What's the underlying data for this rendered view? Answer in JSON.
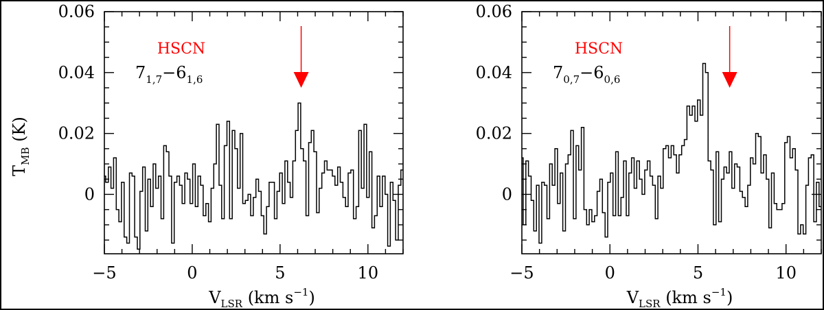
{
  "colors": {
    "spectrum": "#000000",
    "annotation": "#ff0000",
    "background": "#ffffff"
  },
  "chart_data": [
    {
      "type": "line",
      "step": true,
      "xlim": [
        -5,
        12
      ],
      "ylim": [
        -0.0195,
        0.06
      ],
      "xticks": [
        "−5",
        "0",
        "5",
        "10"
      ],
      "xtick_values": [
        -5,
        0,
        5,
        10
      ],
      "yticks": [
        "0.06",
        "0.04",
        "0.02",
        "0"
      ],
      "ytick_values": [
        0.06,
        0.04,
        0.02,
        0
      ],
      "ylabel": {
        "main": "T",
        "sub": "MB",
        "rest": " (K)"
      },
      "xlabel": {
        "main": "V",
        "sub": "LSR",
        "rest": " (km s",
        "sup": "−1",
        "end": ")"
      },
      "molecule": "HSCN",
      "transition": {
        "upper": "7",
        "upper_sub": "1,7",
        "sep": "−",
        "lower": "6",
        "lower_sub": "1,6"
      },
      "arrow_x": 6.2,
      "x": [
        -5.0,
        -4.85,
        -4.7,
        -4.55,
        -4.4,
        -4.25,
        -4.1,
        -3.95,
        -3.8,
        -3.65,
        -3.5,
        -3.35,
        -3.2,
        -3.05,
        -2.9,
        -2.75,
        -2.6,
        -2.45,
        -2.3,
        -2.15,
        -2.0,
        -1.85,
        -1.7,
        -1.55,
        -1.4,
        -1.25,
        -1.1,
        -0.95,
        -0.8,
        -0.65,
        -0.5,
        -0.35,
        -0.2,
        -0.05,
        0.1,
        0.25,
        0.4,
        0.55,
        0.7,
        0.85,
        1.0,
        1.15,
        1.3,
        1.45,
        1.6,
        1.75,
        1.9,
        2.05,
        2.2,
        2.35,
        2.5,
        2.65,
        2.8,
        2.95,
        3.1,
        3.25,
        3.4,
        3.55,
        3.7,
        3.85,
        4.0,
        4.15,
        4.3,
        4.45,
        4.6,
        4.75,
        4.9,
        5.05,
        5.2,
        5.35,
        5.5,
        5.65,
        5.8,
        5.95,
        6.1,
        6.25,
        6.4,
        6.55,
        6.7,
        6.85,
        7.0,
        7.15,
        7.3,
        7.45,
        7.6,
        7.75,
        7.9,
        8.05,
        8.2,
        8.35,
        8.5,
        8.65,
        8.8,
        8.95,
        9.1,
        9.25,
        9.4,
        9.55,
        9.7,
        9.85,
        10.0,
        10.15,
        10.3,
        10.45,
        10.6,
        10.75,
        10.9,
        11.05,
        11.2,
        11.35,
        11.5,
        11.65,
        11.8,
        11.95
      ],
      "y": [
        0.006,
        0.004,
        0.009,
        0.002,
        0.012,
        -0.005,
        -0.009,
        0.004,
        -0.014,
        -0.016,
        0.007,
        0.006,
        -0.014,
        -0.018,
        0.001,
        0.009,
        -0.012,
        0.005,
        -0.004,
        0.01,
        0.002,
        0.006,
        -0.008,
        0.016,
        0.014,
        0.006,
        -0.016,
        0.004,
        0.006,
        0.003,
        -0.003,
        0.007,
        0.005,
        -0.003,
        0.01,
        -0.004,
        0.006,
        0.003,
        -0.007,
        -0.003,
        -0.009,
        0.002,
        0.01,
        0.023,
        0.003,
        -0.008,
        0.016,
        0.024,
        -0.008,
        0.021,
        0.015,
        0.002,
        0.02,
        -0.003,
        -0.002,
        0.0,
        -0.007,
        -0.001,
        0.005,
        0.001,
        -0.007,
        -0.013,
        -0.004,
        0.004,
        0.004,
        -0.008,
        0.001,
        0.007,
        -0.003,
        0.011,
        0.004,
        -0.001,
        0.011,
        0.021,
        0.03,
        0.015,
        0.011,
        -0.007,
        0.017,
        0.021,
        0.014,
        -0.006,
        0.002,
        0.007,
        0.011,
        0.008,
        0.008,
        0.006,
        0.003,
        0.009,
        0.004,
        -0.001,
        -0.004,
        0.007,
        0.008,
        -0.008,
        -0.004,
        0.021,
        0.002,
        0.023,
        -0.001,
        0.014,
        -0.011,
        -0.007,
        0.006,
        -0.004,
        0.006,
        0.0,
        -0.017,
        0.004,
        -0.002,
        -0.015,
        0.003,
        0.008
      ]
    },
    {
      "type": "line",
      "step": true,
      "xlim": [
        -5,
        12
      ],
      "ylim": [
        -0.0195,
        0.06
      ],
      "xticks": [
        "−5",
        "0",
        "5",
        "10"
      ],
      "xtick_values": [
        -5,
        0,
        5,
        10
      ],
      "yticks": [
        "0.06",
        "0.04",
        "0.02",
        "0"
      ],
      "ytick_values": [
        0.06,
        0.04,
        0.02,
        0
      ],
      "xlabel": {
        "main": "V",
        "sub": "LSR",
        "rest": " (km s",
        "sup": "−1",
        "end": ")"
      },
      "molecule": "HSCN",
      "transition": {
        "upper": "7",
        "upper_sub": "0,7",
        "sep": "−",
        "lower": "6",
        "lower_sub": "0,6"
      },
      "arrow_x": 6.8,
      "x": [
        -5.0,
        -4.85,
        -4.7,
        -4.55,
        -4.4,
        -4.25,
        -4.1,
        -3.95,
        -3.8,
        -3.65,
        -3.5,
        -3.35,
        -3.2,
        -3.05,
        -2.9,
        -2.75,
        -2.6,
        -2.45,
        -2.3,
        -2.15,
        -2.0,
        -1.85,
        -1.7,
        -1.55,
        -1.4,
        -1.25,
        -1.1,
        -0.95,
        -0.8,
        -0.65,
        -0.5,
        -0.35,
        -0.2,
        -0.05,
        0.1,
        0.25,
        0.4,
        0.55,
        0.7,
        0.85,
        1.0,
        1.15,
        1.3,
        1.45,
        1.6,
        1.75,
        1.9,
        2.05,
        2.2,
        2.35,
        2.5,
        2.65,
        2.8,
        2.95,
        3.1,
        3.25,
        3.4,
        3.55,
        3.7,
        3.85,
        4.0,
        4.15,
        4.3,
        4.45,
        4.6,
        4.75,
        4.9,
        5.05,
        5.2,
        5.35,
        5.5,
        5.65,
        5.8,
        5.95,
        6.1,
        6.25,
        6.4,
        6.55,
        6.7,
        6.85,
        7.0,
        7.15,
        7.3,
        7.45,
        7.6,
        7.75,
        7.9,
        8.05,
        8.2,
        8.35,
        8.5,
        8.65,
        8.8,
        8.95,
        9.1,
        9.25,
        9.4,
        9.55,
        9.7,
        9.85,
        10.0,
        10.15,
        10.3,
        10.45,
        10.6,
        10.75,
        10.9,
        11.05,
        11.2,
        11.35,
        11.5,
        11.65,
        11.8,
        11.95
      ],
      "y": [
        0.012,
        -0.01,
        0.011,
        0.006,
        -0.002,
        -0.012,
        0.003,
        -0.016,
        0.004,
        0.003,
        -0.008,
        0.01,
        0.003,
        0.015,
        -0.003,
        0.007,
        -0.012,
        0.01,
        0.013,
        0.021,
        -0.008,
        0.016,
        0.008,
        0.022,
        -0.005,
        -0.01,
        -0.005,
        -0.009,
        -0.007,
        0.001,
        0.005,
        -0.006,
        -0.014,
        0.004,
        0.007,
        -0.007,
        0.014,
        -0.007,
        -0.001,
        0.011,
        -0.007,
        0.007,
        0.012,
        0.002,
        0.011,
        0.005,
        0.0,
        0.008,
        0.011,
        0.006,
        0.003,
        -0.008,
        0.006,
        0.002,
        0.015,
        0.016,
        0.012,
        0.016,
        0.013,
        0.007,
        0.013,
        0.016,
        0.018,
        0.029,
        0.026,
        0.029,
        0.024,
        0.031,
        0.026,
        0.043,
        0.04,
        0.011,
        0.008,
        -0.01,
        0.014,
        -0.009,
        0.005,
        0.009,
        0.007,
        0.014,
        0.002,
        0.01,
        0.009,
        0.001,
        -0.001,
        -0.004,
        0.003,
        0.012,
        0.01,
        0.02,
        0.019,
        0.007,
        0.013,
        0.005,
        -0.011,
        0.007,
        -0.003,
        -0.005,
        -0.005,
        -0.003,
        0.017,
        0.019,
        0.012,
        0.015,
        0.008,
        -0.013,
        -0.01,
        -0.013,
        0.003,
        0.012,
        0.013,
        -0.009,
        0.004,
        -0.004
      ]
    }
  ]
}
